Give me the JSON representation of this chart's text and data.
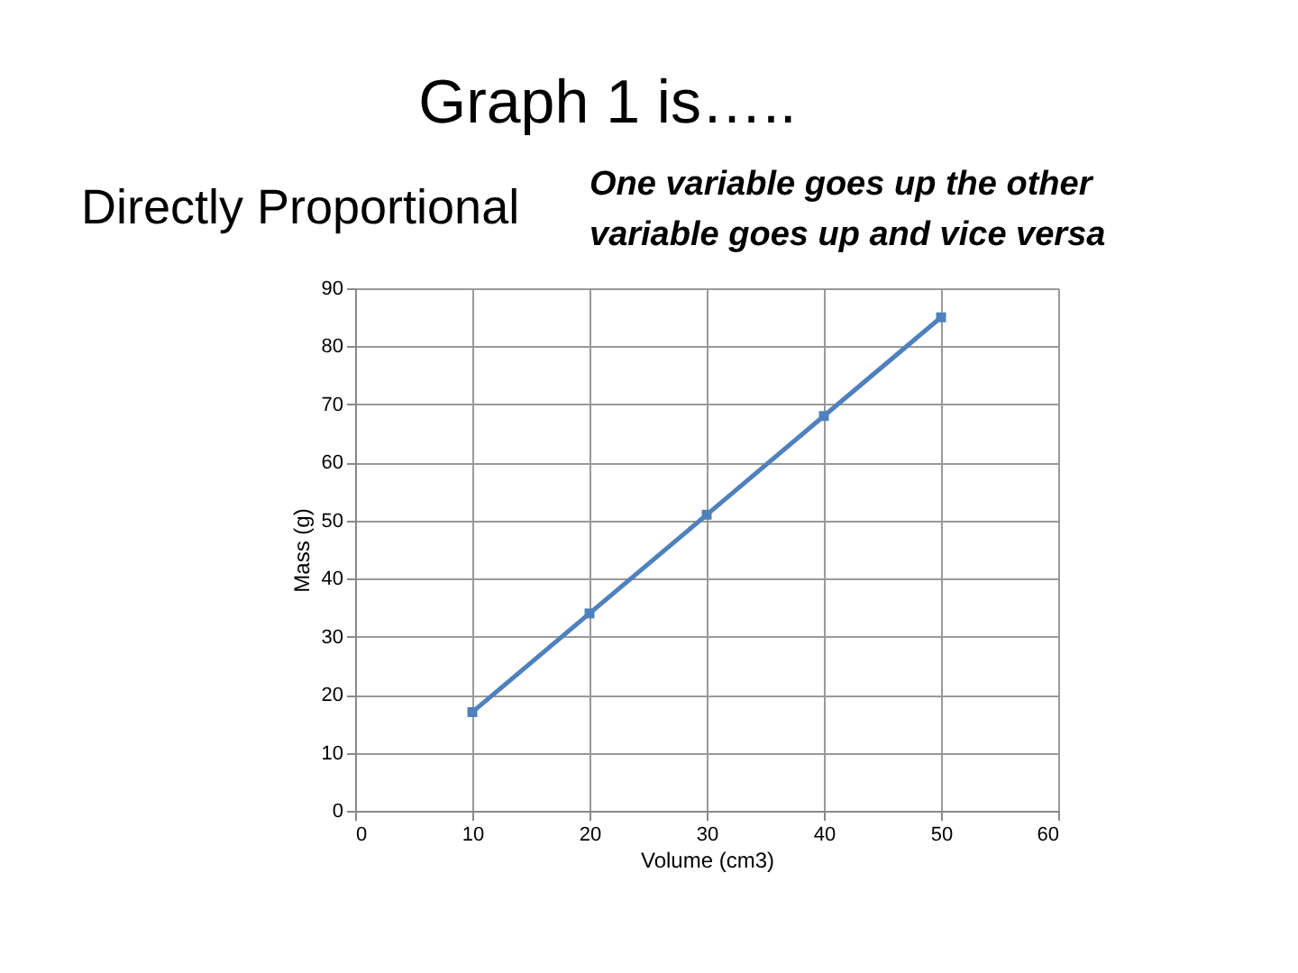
{
  "chart_data": {
    "type": "line",
    "title": "Graph 1 is…..",
    "subtitle": "Directly Proportional",
    "annotations": [
      "One variable goes up the other variable goes up and vice versa"
    ],
    "x": [
      10,
      20,
      30,
      40,
      50
    ],
    "series": [
      {
        "color": "#4f81bd",
        "values": [
          17,
          34,
          51,
          68,
          85
        ]
      }
    ],
    "xlabel": "Volume (cm3)",
    "ylabel": "Mass (g)",
    "xlim": [
      0,
      60
    ],
    "xticks": [
      0,
      10,
      20,
      30,
      40,
      50,
      60
    ],
    "ylim": [
      0,
      90
    ],
    "yticks": [
      0,
      10,
      20,
      30,
      40,
      50,
      60,
      70,
      80,
      90
    ],
    "grid": true,
    "marker": "square",
    "line_style": "solid"
  }
}
